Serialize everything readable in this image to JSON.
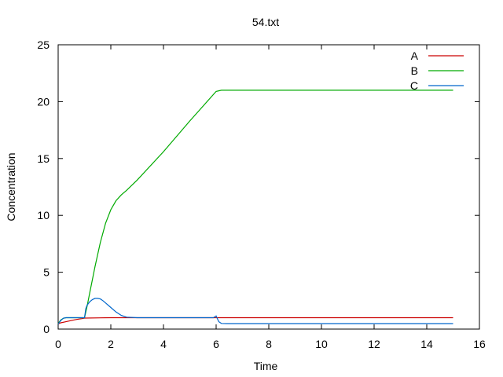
{
  "chart_data": {
    "type": "line",
    "title": "54.txt",
    "xlabel": "Time",
    "ylabel": "Concentration",
    "xlim": [
      0,
      16
    ],
    "ylim": [
      0,
      25
    ],
    "xticks": [
      0,
      2,
      4,
      6,
      8,
      10,
      12,
      14,
      16
    ],
    "yticks": [
      0,
      5,
      10,
      15,
      20,
      25
    ],
    "grid": false,
    "legend": "top-right",
    "series": [
      {
        "name": "A",
        "color": "#cc0000",
        "x": [
          0,
          0.1,
          0.3,
          0.5,
          0.7,
          0.9,
          1.0,
          2,
          4,
          6,
          8,
          10,
          12,
          14,
          15
        ],
        "y": [
          0.45,
          0.55,
          0.65,
          0.75,
          0.85,
          0.92,
          0.97,
          1.0,
          1.0,
          1.0,
          1.0,
          1.0,
          1.0,
          1.0,
          1.0
        ]
      },
      {
        "name": "B",
        "color": "#00aa00",
        "x": [
          0,
          0.1,
          0.2,
          0.3,
          0.5,
          1.0,
          1.1,
          1.2,
          1.4,
          1.6,
          1.8,
          2.0,
          2.2,
          2.4,
          2.6,
          3.0,
          4.0,
          5.0,
          6.0,
          6.2,
          6.5,
          8,
          10,
          12,
          14,
          15
        ],
        "y": [
          0.5,
          0.8,
          0.95,
          1.0,
          1.0,
          1.0,
          2.0,
          3.2,
          5.5,
          7.6,
          9.3,
          10.5,
          11.3,
          11.8,
          12.2,
          13.1,
          15.6,
          18.3,
          20.9,
          21.0,
          21.0,
          21.0,
          21.0,
          21.0,
          21.0,
          21.0
        ]
      },
      {
        "name": "C",
        "color": "#0066cc",
        "x": [
          0,
          0.1,
          0.2,
          0.3,
          0.5,
          1.0,
          1.05,
          1.1,
          1.2,
          1.3,
          1.4,
          1.5,
          1.6,
          1.7,
          1.8,
          2.0,
          2.2,
          2.4,
          2.6,
          3.0,
          4.0,
          5.0,
          5.9,
          6.0,
          6.05,
          6.1,
          6.2,
          6.4,
          8,
          10,
          12,
          14,
          15
        ],
        "y": [
          0.45,
          0.75,
          0.95,
          1.0,
          1.0,
          1.0,
          1.8,
          2.1,
          2.4,
          2.6,
          2.7,
          2.7,
          2.65,
          2.5,
          2.3,
          1.9,
          1.5,
          1.2,
          1.05,
          1.0,
          1.0,
          1.0,
          1.0,
          1.15,
          0.9,
          0.65,
          0.5,
          0.48,
          0.48,
          0.48,
          0.48,
          0.48,
          0.48
        ]
      }
    ]
  }
}
